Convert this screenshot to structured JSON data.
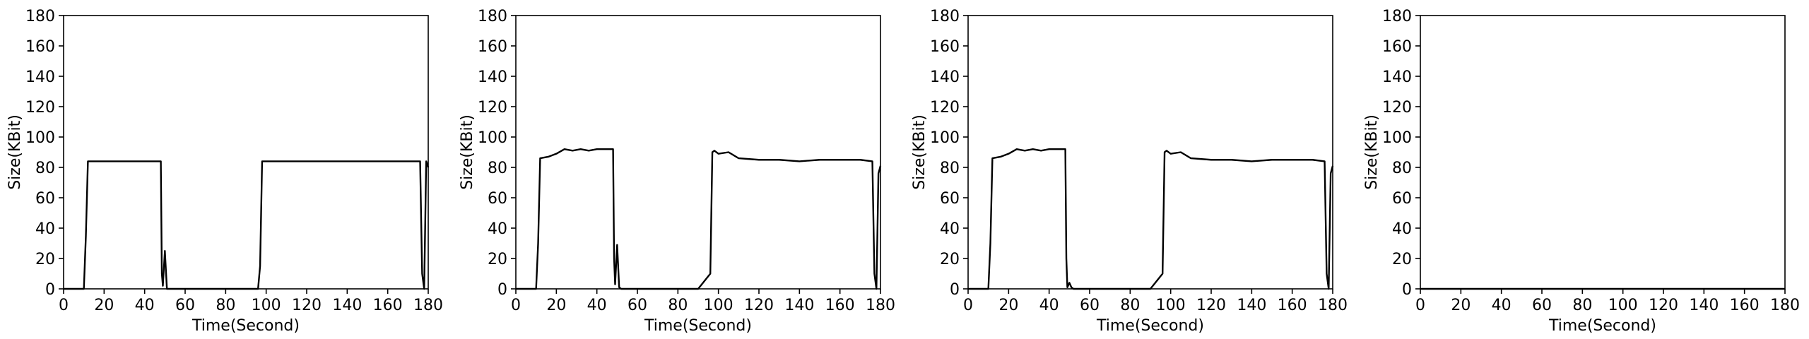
{
  "chart_data": [
    {
      "type": "line",
      "xlabel": "Time(Second)",
      "ylabel": "Size(KBit)",
      "xlim": [
        0,
        180
      ],
      "ylim": [
        0,
        180
      ],
      "xticks": [
        0,
        20,
        40,
        60,
        80,
        100,
        120,
        140,
        160,
        180
      ],
      "yticks": [
        0,
        20,
        40,
        60,
        80,
        100,
        120,
        140,
        160,
        180
      ],
      "grid": false,
      "series": [
        {
          "x": [
            0,
            10,
            11,
            12,
            20,
            30,
            40,
            48,
            48.5,
            49,
            50,
            51,
            52,
            96,
            97,
            98,
            110,
            130,
            150,
            170,
            176,
            177,
            178,
            179,
            180
          ],
          "y": [
            0,
            0,
            35,
            84,
            84,
            84,
            84,
            84,
            10,
            2,
            25,
            0,
            0,
            0,
            15,
            84,
            84,
            84,
            84,
            84,
            84,
            10,
            0,
            84,
            80
          ]
        }
      ]
    },
    {
      "type": "line",
      "xlabel": "Time(Second)",
      "ylabel": "Size(KBit)",
      "xlim": [
        0,
        180
      ],
      "ylim": [
        0,
        180
      ],
      "xticks": [
        0,
        20,
        40,
        60,
        80,
        100,
        120,
        140,
        160,
        180
      ],
      "yticks": [
        0,
        20,
        40,
        60,
        80,
        100,
        120,
        140,
        160,
        180
      ],
      "grid": false,
      "series": [
        {
          "x": [
            0,
            10,
            11,
            12,
            16,
            20,
            24,
            28,
            32,
            36,
            40,
            44,
            48,
            48.5,
            49,
            50,
            51,
            52,
            70,
            90,
            96,
            97,
            98,
            100,
            105,
            110,
            120,
            130,
            140,
            150,
            160,
            170,
            176,
            177,
            178,
            179,
            180
          ],
          "y": [
            0,
            0,
            30,
            86,
            87,
            89,
            92,
            91,
            92,
            91,
            92,
            92,
            92,
            20,
            3,
            29,
            1,
            0,
            0,
            0,
            10,
            90,
            91,
            89,
            90,
            86,
            85,
            85,
            84,
            85,
            85,
            85,
            84,
            10,
            0,
            76,
            81
          ]
        }
      ]
    },
    {
      "type": "line",
      "xlabel": "Time(Second)",
      "ylabel": "Size(KBit)",
      "xlim": [
        0,
        180
      ],
      "ylim": [
        0,
        180
      ],
      "xticks": [
        0,
        20,
        40,
        60,
        80,
        100,
        120,
        140,
        160,
        180
      ],
      "yticks": [
        0,
        20,
        40,
        60,
        80,
        100,
        120,
        140,
        160,
        180
      ],
      "grid": false,
      "series": [
        {
          "x": [
            0,
            10,
            11,
            12,
            16,
            20,
            24,
            28,
            32,
            36,
            40,
            44,
            48,
            48.5,
            49,
            50,
            51,
            52,
            70,
            90,
            96,
            97,
            98,
            100,
            105,
            110,
            120,
            130,
            140,
            150,
            160,
            170,
            176,
            177,
            178,
            179,
            180
          ],
          "y": [
            0,
            0,
            30,
            86,
            87,
            89,
            92,
            91,
            92,
            91,
            92,
            92,
            92,
            20,
            1,
            4,
            1,
            0,
            0,
            0,
            10,
            90,
            91,
            89,
            90,
            86,
            85,
            85,
            84,
            85,
            85,
            85,
            84,
            10,
            0,
            76,
            81
          ]
        }
      ]
    },
    {
      "type": "line",
      "xlabel": "Time(Second)",
      "ylabel": "Size(KBit)",
      "xlim": [
        0,
        180
      ],
      "ylim": [
        0,
        180
      ],
      "xticks": [
        0,
        20,
        40,
        60,
        80,
        100,
        120,
        140,
        160,
        180
      ],
      "yticks": [
        0,
        20,
        40,
        60,
        80,
        100,
        120,
        140,
        160,
        180
      ],
      "grid": false,
      "series": [
        {
          "x": [
            0,
            180
          ],
          "y": [
            0,
            0
          ]
        }
      ]
    }
  ]
}
